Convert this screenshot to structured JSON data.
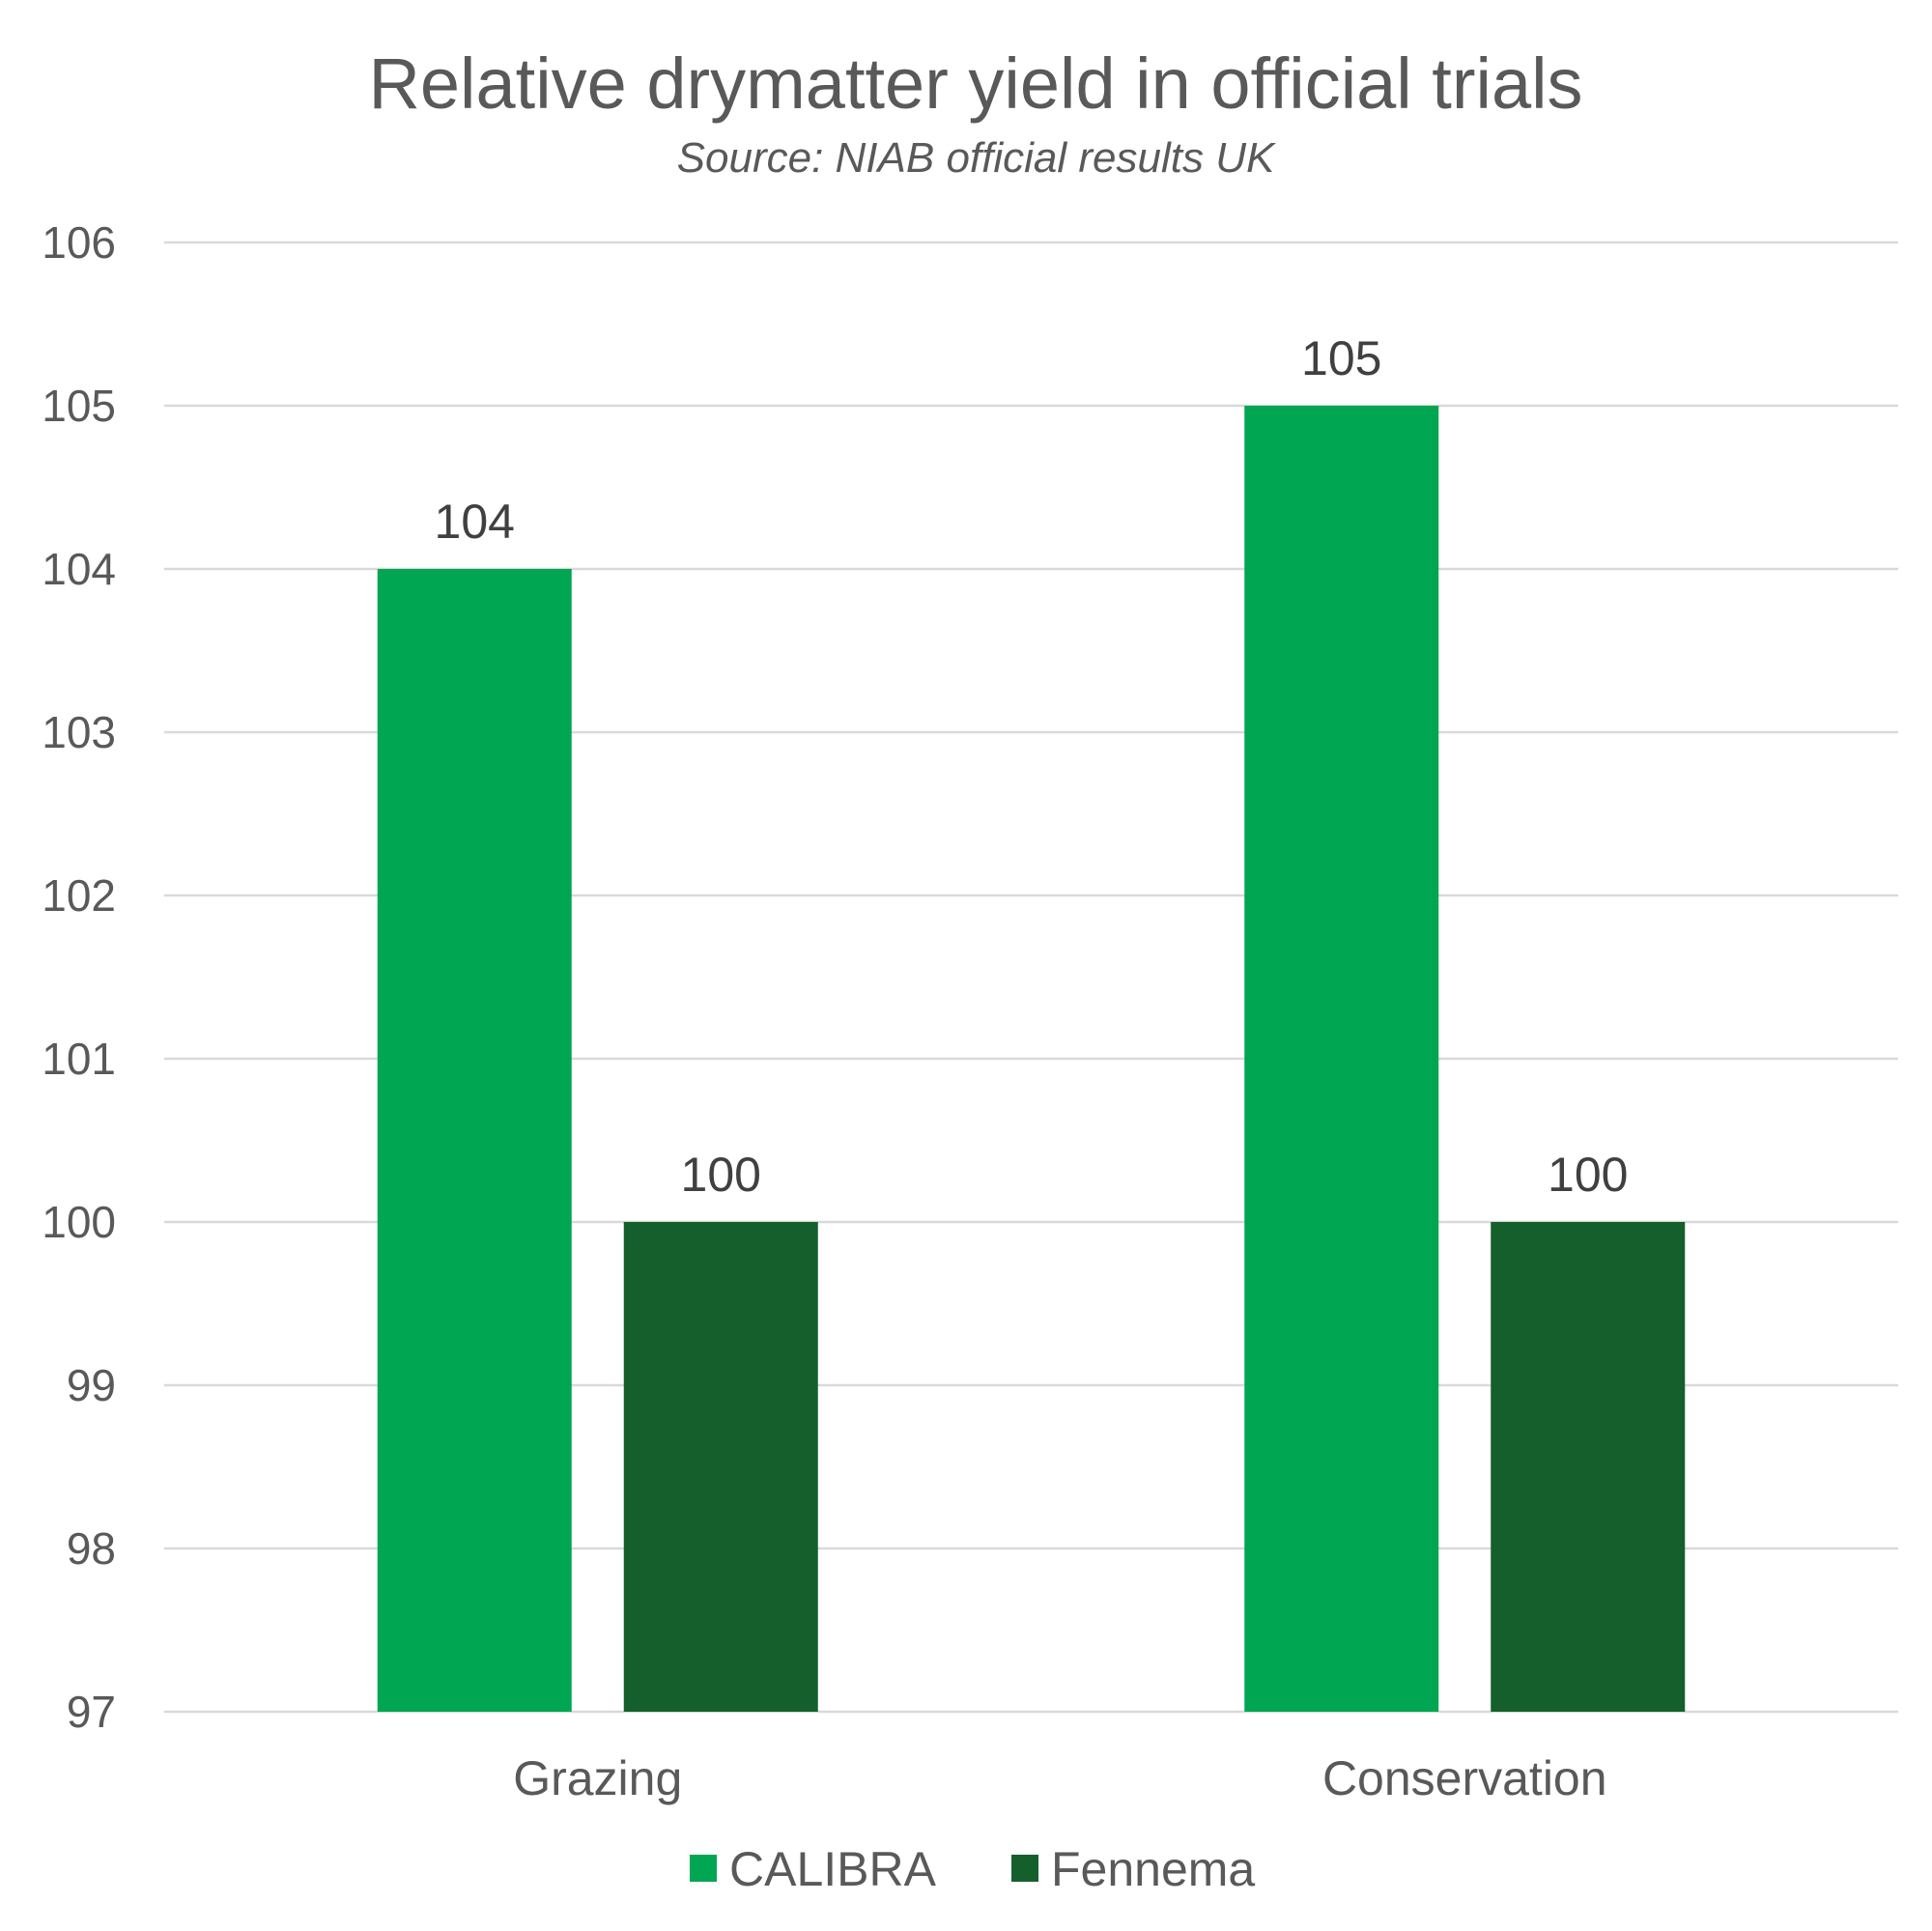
{
  "chart_data": {
    "type": "bar",
    "title": "Relative drymatter yield in official trials",
    "subtitle": "Source: NIAB official results UK",
    "categories": [
      "Grazing",
      "Conservation"
    ],
    "series": [
      {
        "name": "CALIBRA",
        "color": "#00a651",
        "values": [
          104,
          105
        ]
      },
      {
        "name": "Fennema",
        "color": "#155f2d",
        "values": [
          100,
          100
        ]
      }
    ],
    "ylim": [
      97,
      106
    ],
    "yticks": [
      "97",
      "98",
      "99",
      "100",
      "101",
      "102",
      "103",
      "104",
      "105",
      "106"
    ],
    "data_labels": [
      [
        "104",
        "105"
      ],
      [
        "100",
        "100"
      ]
    ],
    "grid": true,
    "legend_position": "bottom",
    "xlabel": "",
    "ylabel": ""
  }
}
